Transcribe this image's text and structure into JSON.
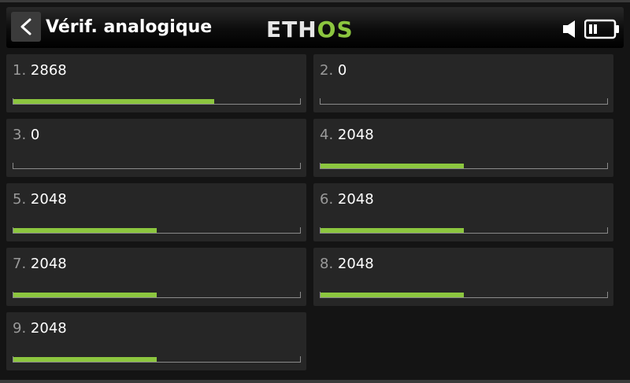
{
  "header": {
    "title": "Vérif. analogique",
    "logo_part1": "ETH",
    "logo_part2": "OS"
  },
  "colors": {
    "accent": "#8cc63f",
    "tile_bg": "#262626",
    "background": "#141414"
  },
  "icons": {
    "back": "chevron-left-icon",
    "speaker": "speaker-icon",
    "battery": "battery-icon"
  },
  "analogs": [
    {
      "index": "1.",
      "value": "2868",
      "fill": 0.7
    },
    {
      "index": "2.",
      "value": "0",
      "fill": 0
    },
    {
      "index": "3.",
      "value": "0",
      "fill": 0
    },
    {
      "index": "4.",
      "value": "2048",
      "fill": 0.5
    },
    {
      "index": "5.",
      "value": "2048",
      "fill": 0.5
    },
    {
      "index": "6.",
      "value": "2048",
      "fill": 0.5
    },
    {
      "index": "7.",
      "value": "2048",
      "fill": 0.5
    },
    {
      "index": "8.",
      "value": "2048",
      "fill": 0.5
    },
    {
      "index": "9.",
      "value": "2048",
      "fill": 0.5
    }
  ]
}
